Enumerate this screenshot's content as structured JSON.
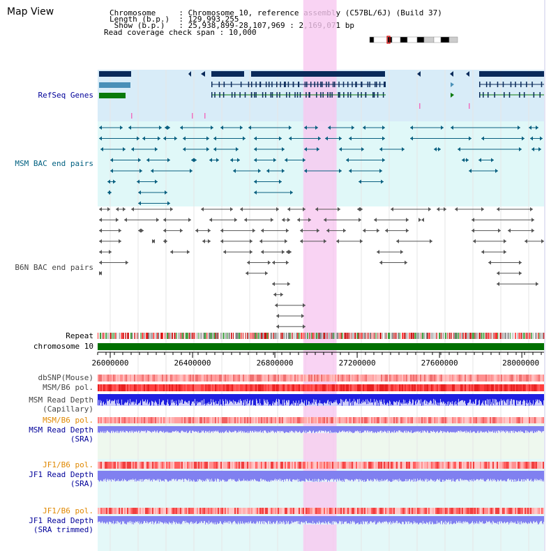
{
  "header": {
    "title": "Map View",
    "info_lines": [
      {
        "key": "Chromosome     ",
        "value": "Chromosome 10, reference assembly (C57BL/6J) (Build 37)"
      },
      {
        "key": "Length (b.p.)  ",
        "value": "129,993,255"
      },
      {
        "key": " Show (b.p.)   ",
        "value": "25,938,899-28,107,969 : 2,169,071 bp"
      },
      {
        "key": "Read coverage check span",
        "value": "10,000"
      }
    ]
  },
  "tracks": {
    "refseq": "RefSeq Genes",
    "msm_bac": "MSM BAC end pairs",
    "b6n_bac": "B6N BAC end pairs",
    "repeat": "Repeat",
    "chromosome": "chromosome 10",
    "dbsnp": "dbSNP(Mouse)",
    "msm_b6_pol": "MSM/B6 pol.",
    "msm_depth_cap_1": "MSM Read Depth",
    "msm_depth_cap_2": "(Capillary)",
    "msm_b6_pol_sra": "MSM/B6 pol.",
    "msm_depth_sra_1": "MSM Read Depth",
    "msm_depth_sra_2": "(SRA)",
    "jf1_b6_pol": "JF1/B6 pol.",
    "jf1_depth_sra_1": "JF1 Read Depth",
    "jf1_depth_sra_2": "(SRA)",
    "jf1_b6_pol_trim": "JF1/B6 pol.",
    "jf1_depth_trim_1": "JF1 Read Depth",
    "jf1_depth_trim_2": "(SRA trimmed)"
  },
  "axis": {
    "ticks": [
      "26000000",
      "26400000",
      "26800000",
      "27200000",
      "27600000",
      "28000000"
    ],
    "tick_values": [
      26000000,
      26400000,
      26800000,
      27200000,
      27600000,
      28000000
    ],
    "range": [
      25938899,
      28107969
    ]
  },
  "highlight_range": [
    26938000,
    27100000
  ],
  "colors": {
    "gene": "#0a2a5a",
    "gene_light": "#4a90b8",
    "gene_green": "#0a7a0a",
    "msm_pair": "#0a6080",
    "b6n_pair": "#555555",
    "chrom": "#007000",
    "highlight": "#f8c8f0",
    "refseq_bg": "#d8ecf8",
    "msm_bg": "#e0f8f8",
    "depth_blue": "#2020e0",
    "depth_light": "#8080f0",
    "label_blue": "#000099",
    "label_teal": "#006080",
    "label_orange": "#e08800",
    "label_gray": "#444444"
  },
  "icons": {
    "ideogram": "chromosome-ideogram"
  }
}
